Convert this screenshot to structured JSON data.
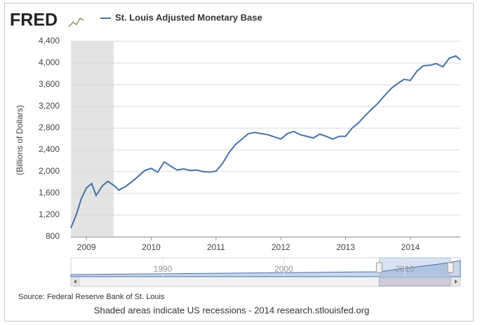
{
  "chart_data": {
    "type": "line",
    "logo": "FRED",
    "y_label": "(Billions of Dollars)",
    "source": "Source: Federal Reserve Bank of St. Louis",
    "footer": "Shaded areas indicate US recessions - 2014 research.stlouisfed.org",
    "x": [
      2008.76,
      2008.85,
      2008.92,
      2009.0,
      2009.08,
      2009.15,
      2009.25,
      2009.33,
      2009.42,
      2009.5,
      2009.6,
      2009.75,
      2009.9,
      2010.0,
      2010.1,
      2010.2,
      2010.3,
      2010.4,
      2010.5,
      2010.6,
      2010.7,
      2010.8,
      2010.9,
      2011.0,
      2011.1,
      2011.2,
      2011.3,
      2011.4,
      2011.5,
      2011.6,
      2011.7,
      2011.8,
      2011.9,
      2012.0,
      2012.1,
      2012.2,
      2012.3,
      2012.4,
      2012.5,
      2012.6,
      2012.7,
      2012.8,
      2012.9,
      2013.0,
      2013.1,
      2013.2,
      2013.3,
      2013.4,
      2013.5,
      2013.6,
      2013.7,
      2013.8,
      2013.9,
      2014.0,
      2014.1,
      2014.2,
      2014.3,
      2014.4,
      2014.5,
      2014.6,
      2014.7,
      2014.77
    ],
    "series": [
      {
        "name": "St. Louis Adjusted Monetary Base",
        "color": "#4572a7",
        "values": [
          960,
          1230,
          1500,
          1700,
          1780,
          1560,
          1740,
          1820,
          1750,
          1660,
          1720,
          1860,
          2020,
          2060,
          1990,
          2180,
          2100,
          2030,
          2050,
          2020,
          2030,
          2000,
          1990,
          2010,
          2150,
          2350,
          2500,
          2600,
          2700,
          2720,
          2700,
          2680,
          2640,
          2600,
          2700,
          2740,
          2680,
          2650,
          2620,
          2690,
          2650,
          2600,
          2650,
          2650,
          2800,
          2900,
          3030,
          3150,
          3260,
          3400,
          3530,
          3620,
          3700,
          3680,
          3850,
          3950,
          3960,
          3990,
          3930,
          4090,
          4130,
          4060
        ]
      }
    ],
    "recessions": [
      [
        2007.92,
        2009.42
      ]
    ],
    "xlim": [
      2008.76,
      2014.77
    ],
    "xticks": [
      2009,
      2010,
      2011,
      2012,
      2013,
      2014
    ],
    "ylim": [
      800,
      4400
    ],
    "yticks": [
      800,
      {
        "value": 1200,
        "label": "1,200"
      },
      {
        "value": 1600,
        "label": "1,600"
      },
      {
        "value": 2000,
        "label": "2,000"
      },
      {
        "value": 2400,
        "label": "2,400"
      },
      {
        "value": 2800,
        "label": "2,800"
      },
      {
        "value": 3200,
        "label": "3,200"
      },
      {
        "value": 3600,
        "label": "3,600"
      },
      {
        "value": 4000,
        "label": "4,000"
      },
      {
        "value": 4400,
        "label": "4,400"
      }
    ],
    "grid": true,
    "navigator": {
      "xlim": [
        1982.4,
        2014.6
      ],
      "xticks": [
        1990,
        2000,
        2010
      ]
    }
  }
}
